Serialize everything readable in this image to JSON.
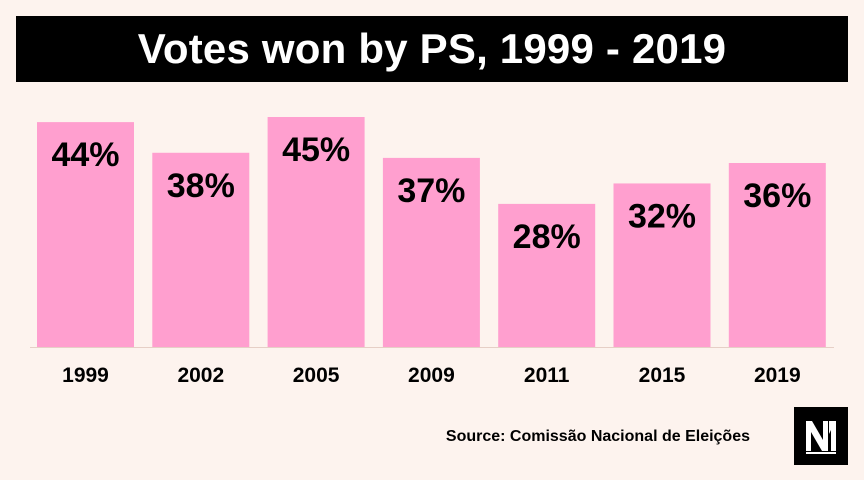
{
  "title": "Votes won by PS, 1999 - 2019",
  "source": "Source: Comissão Nacional de Eleições",
  "logo_icon": "nm-logo-icon",
  "colors": {
    "bar": "#ff9fcf",
    "title_bg": "#000000",
    "background": "#fdf3ee"
  },
  "chart_data": {
    "type": "bar",
    "title": "Votes won by PS, 1999 - 2019",
    "categories": [
      "1999",
      "2002",
      "2005",
      "2009",
      "2011",
      "2015",
      "2019"
    ],
    "values": [
      44,
      38,
      45,
      37,
      28,
      32,
      36
    ],
    "data_labels": [
      "44%",
      "38%",
      "45%",
      "37%",
      "28%",
      "32%",
      "36%"
    ],
    "value_unit": "%",
    "ylim": [
      0,
      45
    ],
    "grid": false,
    "legend": "none",
    "xlabel": "",
    "ylabel": ""
  }
}
